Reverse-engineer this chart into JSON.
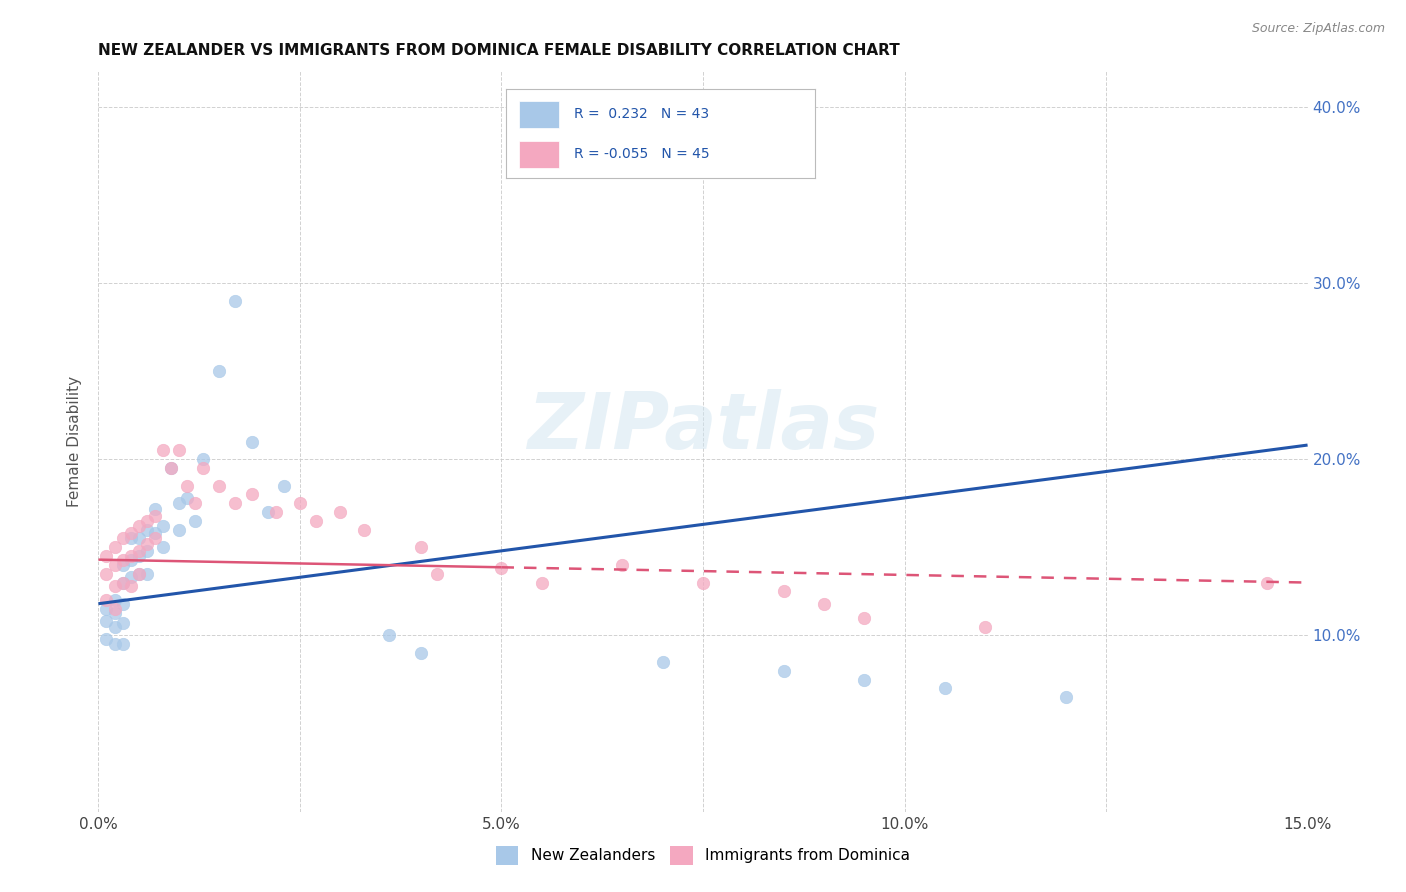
{
  "title": "NEW ZEALANDER VS IMMIGRANTS FROM DOMINICA FEMALE DISABILITY CORRELATION CHART",
  "source": "Source: ZipAtlas.com",
  "ylabel": "Female Disability",
  "xlim": [
    0.0,
    0.15
  ],
  "ylim": [
    0.0,
    0.42
  ],
  "xticks": [
    0.0,
    0.025,
    0.05,
    0.075,
    0.1,
    0.125,
    0.15
  ],
  "xtick_labels": [
    "0.0%",
    "",
    "5.0%",
    "",
    "10.0%",
    "",
    "15.0%"
  ],
  "yticks": [
    0.0,
    0.1,
    0.2,
    0.3,
    0.4
  ],
  "right_ytick_labels": [
    "",
    "10.0%",
    "20.0%",
    "30.0%",
    "40.0%"
  ],
  "blue_color": "#a8c8e8",
  "pink_color": "#f4a8c0",
  "blue_line_color": "#2255aa",
  "pink_line_color": "#dd5577",
  "watermark": "ZIPatlas",
  "blue_line_x0": 0.0,
  "blue_line_y0": 0.118,
  "blue_line_x1": 0.15,
  "blue_line_y1": 0.208,
  "pink_line_x0": 0.0,
  "pink_line_y0": 0.143,
  "pink_line_x1": 0.15,
  "pink_line_y1": 0.13,
  "blue_scatter_x": [
    0.001,
    0.001,
    0.001,
    0.002,
    0.002,
    0.002,
    0.002,
    0.003,
    0.003,
    0.003,
    0.003,
    0.003,
    0.004,
    0.004,
    0.004,
    0.005,
    0.005,
    0.005,
    0.006,
    0.006,
    0.006,
    0.007,
    0.007,
    0.008,
    0.008,
    0.009,
    0.01,
    0.01,
    0.011,
    0.012,
    0.013,
    0.015,
    0.017,
    0.019,
    0.021,
    0.023,
    0.036,
    0.04,
    0.07,
    0.085,
    0.095,
    0.105,
    0.12
  ],
  "blue_scatter_y": [
    0.115,
    0.108,
    0.098,
    0.12,
    0.113,
    0.105,
    0.095,
    0.14,
    0.13,
    0.118,
    0.107,
    0.095,
    0.155,
    0.143,
    0.133,
    0.155,
    0.145,
    0.135,
    0.16,
    0.148,
    0.135,
    0.172,
    0.158,
    0.162,
    0.15,
    0.195,
    0.175,
    0.16,
    0.178,
    0.165,
    0.2,
    0.25,
    0.29,
    0.21,
    0.17,
    0.185,
    0.1,
    0.09,
    0.085,
    0.08,
    0.075,
    0.07,
    0.065
  ],
  "pink_scatter_x": [
    0.001,
    0.001,
    0.001,
    0.002,
    0.002,
    0.002,
    0.002,
    0.003,
    0.003,
    0.003,
    0.004,
    0.004,
    0.004,
    0.005,
    0.005,
    0.005,
    0.006,
    0.006,
    0.007,
    0.007,
    0.008,
    0.009,
    0.01,
    0.011,
    0.012,
    0.013,
    0.015,
    0.017,
    0.019,
    0.022,
    0.025,
    0.027,
    0.03,
    0.033,
    0.04,
    0.042,
    0.05,
    0.055,
    0.065,
    0.075,
    0.085,
    0.09,
    0.095,
    0.11,
    0.145
  ],
  "pink_scatter_y": [
    0.145,
    0.135,
    0.12,
    0.15,
    0.14,
    0.128,
    0.115,
    0.155,
    0.143,
    0.13,
    0.158,
    0.145,
    0.128,
    0.162,
    0.148,
    0.135,
    0.165,
    0.152,
    0.168,
    0.155,
    0.205,
    0.195,
    0.205,
    0.185,
    0.175,
    0.195,
    0.185,
    0.175,
    0.18,
    0.17,
    0.175,
    0.165,
    0.17,
    0.16,
    0.15,
    0.135,
    0.138,
    0.13,
    0.14,
    0.13,
    0.125,
    0.118,
    0.11,
    0.105,
    0.13
  ],
  "grid_color": "#cccccc",
  "background_color": "#ffffff"
}
